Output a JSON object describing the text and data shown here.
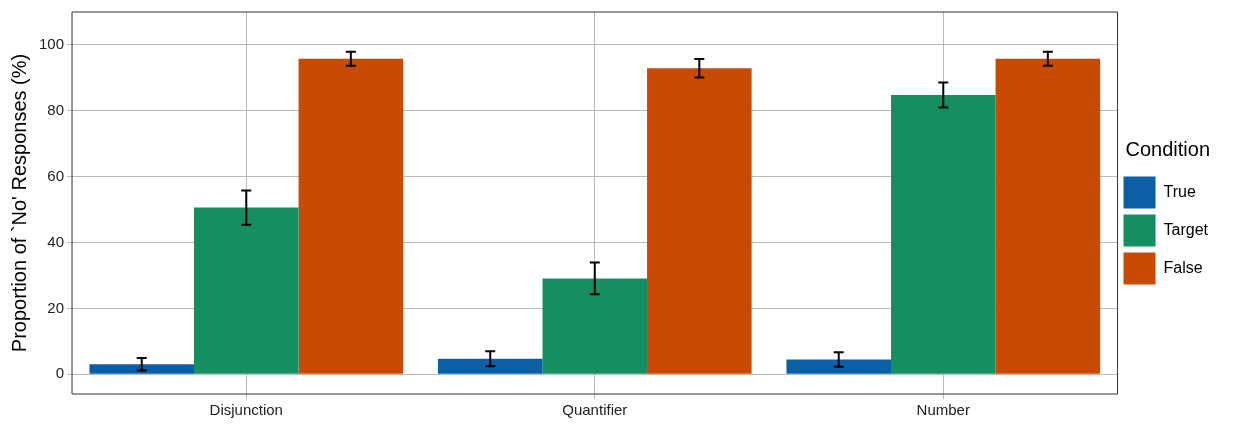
{
  "chart_data": {
    "type": "bar",
    "ylabel": "Proportion of `No' Responses (%)",
    "legend_title": "Condition",
    "categories": [
      "Disjunction",
      "Quantifier",
      "Number"
    ],
    "series": [
      {
        "name": "True",
        "color": "#0b5fa5",
        "values": [
          3.0,
          4.7,
          4.5
        ],
        "errors": [
          1.9,
          2.3,
          2.2
        ]
      },
      {
        "name": "Target",
        "color": "#158f62",
        "values": [
          50.6,
          29.1,
          84.8
        ],
        "errors": [
          5.2,
          4.8,
          3.8
        ]
      },
      {
        "name": "False",
        "color": "#c94a05",
        "values": [
          95.8,
          92.9,
          95.8
        ],
        "errors": [
          2.1,
          2.8,
          2.1
        ]
      }
    ],
    "ylim": [
      -6,
      110
    ],
    "yticks": [
      0,
      20,
      40,
      60,
      80,
      100
    ],
    "grid": true,
    "legend": "right"
  }
}
